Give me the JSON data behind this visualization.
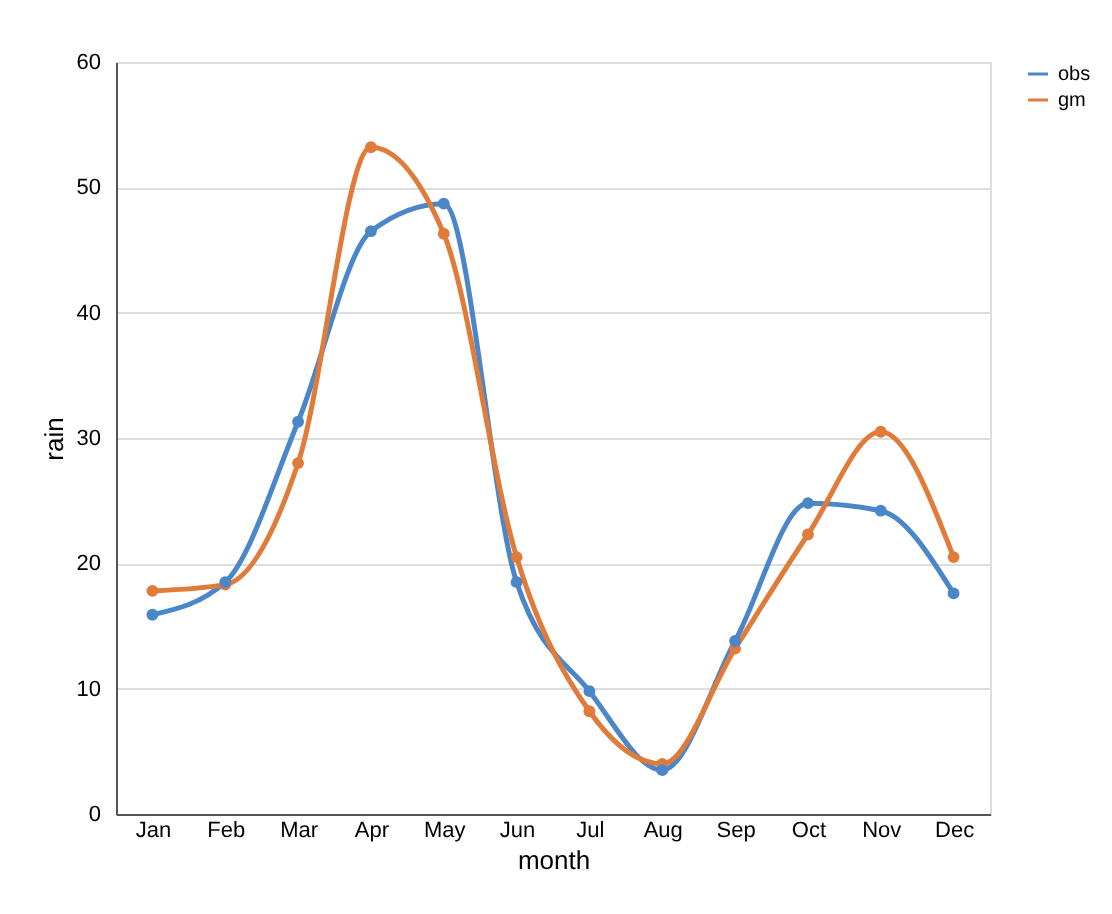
{
  "chart_data": {
    "type": "line",
    "xlabel": "month",
    "ylabel": "rain",
    "categories": [
      "Jan",
      "Feb",
      "Mar",
      "Apr",
      "May",
      "Jun",
      "Jul",
      "Aug",
      "Sep",
      "Oct",
      "Nov",
      "Dec"
    ],
    "series": [
      {
        "name": "obs",
        "color": "#4a86c8",
        "values": [
          15.9,
          18.5,
          31.3,
          46.5,
          48.7,
          18.5,
          9.8,
          3.5,
          13.8,
          24.8,
          24.2,
          17.6
        ]
      },
      {
        "name": "gm",
        "color": "#e07b39",
        "values": [
          17.8,
          18.3,
          28.0,
          53.2,
          46.3,
          20.5,
          8.2,
          4.0,
          13.2,
          22.3,
          30.5,
          20.5
        ]
      }
    ],
    "ylim": [
      0,
      60
    ],
    "yticks": [
      0,
      10,
      20,
      30,
      40,
      50,
      60
    ],
    "grid": "y",
    "legend": "right",
    "marker": "circle",
    "line_style": "solid"
  }
}
